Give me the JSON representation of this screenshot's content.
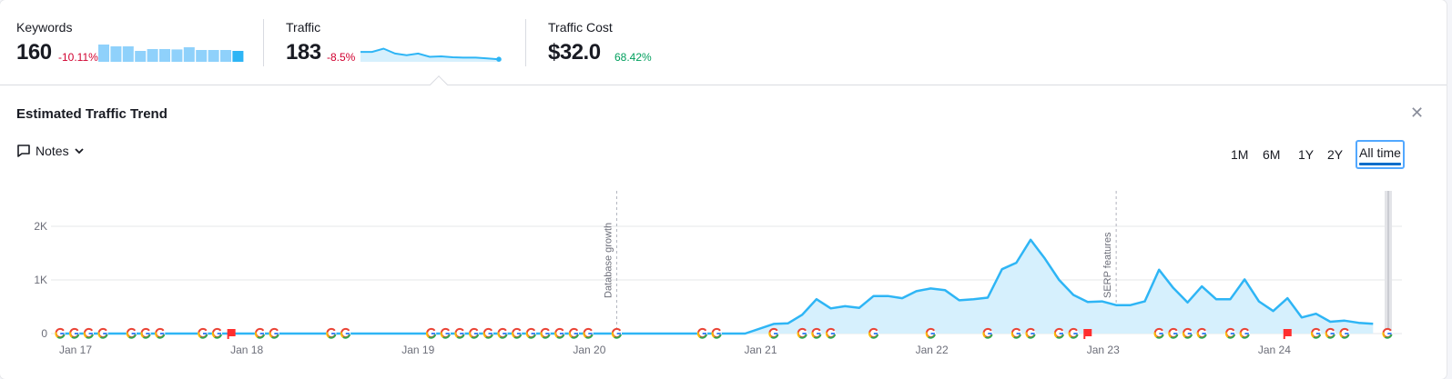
{
  "metrics": {
    "keywords": {
      "label": "Keywords",
      "value": "160",
      "delta": "-10.11%",
      "bars": [
        0.95,
        0.85,
        0.85,
        0.6,
        0.7,
        0.7,
        0.68,
        0.8,
        0.65,
        0.65,
        0.65,
        0.6
      ]
    },
    "traffic": {
      "label": "Traffic",
      "value": "183",
      "delta": "-8.5%",
      "spark": [
        0.55,
        0.55,
        0.75,
        0.45,
        0.35,
        0.45,
        0.25,
        0.28,
        0.22,
        0.2,
        0.2,
        0.15,
        0.1
      ]
    },
    "traffic_cost": {
      "label": "Traffic Cost",
      "value": "$32.0",
      "delta": "68.42%"
    }
  },
  "colors": {
    "line": "#2eb5f5",
    "fill": "#d6f0fd",
    "negative": "#d1002f",
    "positive": "#009f5d",
    "accent": "#006dca"
  },
  "panel": {
    "title": "Estimated Traffic Trend",
    "close_icon": "close-icon",
    "notes_label": "Notes"
  },
  "periods": [
    "1M",
    "6M",
    "1Y",
    "2Y",
    "All time"
  ],
  "active_period": "All time",
  "chart_data": {
    "type": "area",
    "title": "",
    "xlabel": "",
    "ylabel": "",
    "x_ticks": [
      "Jan 17",
      "Jan 18",
      "Jan 19",
      "Jan 20",
      "Jan 21",
      "Jan 22",
      "Jan 23",
      "Jan 24"
    ],
    "y_ticks": [
      "0",
      "1K",
      "2K"
    ],
    "ylim": [
      0,
      2000
    ],
    "x_start": "2017-01",
    "x_end": "2024-10",
    "grid": true,
    "series": [
      {
        "values": [
          {
            "x": "2017-01",
            "y": 0
          },
          {
            "x": "2021-01",
            "y": 0
          },
          {
            "x": "2021-03",
            "y": 180
          },
          {
            "x": "2021-04",
            "y": 190
          },
          {
            "x": "2021-05",
            "y": 350
          },
          {
            "x": "2021-06",
            "y": 640
          },
          {
            "x": "2021-07",
            "y": 470
          },
          {
            "x": "2021-08",
            "y": 510
          },
          {
            "x": "2021-09",
            "y": 480
          },
          {
            "x": "2021-10",
            "y": 700
          },
          {
            "x": "2021-11",
            "y": 700
          },
          {
            "x": "2021-12",
            "y": 660
          },
          {
            "x": "2022-01",
            "y": 790
          },
          {
            "x": "2022-02",
            "y": 840
          },
          {
            "x": "2022-03",
            "y": 810
          },
          {
            "x": "2022-04",
            "y": 620
          },
          {
            "x": "2022-05",
            "y": 640
          },
          {
            "x": "2022-06",
            "y": 670
          },
          {
            "x": "2022-07",
            "y": 1200
          },
          {
            "x": "2022-08",
            "y": 1320
          },
          {
            "x": "2022-09",
            "y": 1750
          },
          {
            "x": "2022-10",
            "y": 1400
          },
          {
            "x": "2022-11",
            "y": 1000
          },
          {
            "x": "2022-12",
            "y": 720
          },
          {
            "x": "2023-01",
            "y": 590
          },
          {
            "x": "2023-02",
            "y": 600
          },
          {
            "x": "2023-03",
            "y": 530
          },
          {
            "x": "2023-04",
            "y": 530
          },
          {
            "x": "2023-05",
            "y": 600
          },
          {
            "x": "2023-06",
            "y": 1190
          },
          {
            "x": "2023-07",
            "y": 850
          },
          {
            "x": "2023-08",
            "y": 580
          },
          {
            "x": "2023-09",
            "y": 880
          },
          {
            "x": "2023-10",
            "y": 640
          },
          {
            "x": "2023-11",
            "y": 640
          },
          {
            "x": "2023-12",
            "y": 1010
          },
          {
            "x": "2024-01",
            "y": 600
          },
          {
            "x": "2024-02",
            "y": 420
          },
          {
            "x": "2024-03",
            "y": 660
          },
          {
            "x": "2024-04",
            "y": 300
          },
          {
            "x": "2024-05",
            "y": 370
          },
          {
            "x": "2024-06",
            "y": 220
          },
          {
            "x": "2024-07",
            "y": 240
          },
          {
            "x": "2024-08",
            "y": 200
          },
          {
            "x": "2024-09",
            "y": 183
          }
        ]
      }
    ],
    "annotations": [
      {
        "x": "2020-04",
        "label": "Database growth"
      },
      {
        "x": "2023-03",
        "label": "SERP features"
      }
    ],
    "google_markers": [
      "2017-01",
      "2017-02",
      "2017-03",
      "2017-04",
      "2017-06",
      "2017-07",
      "2017-08",
      "2017-11",
      "2017-12",
      "2018-03",
      "2018-04",
      "2018-08",
      "2018-09",
      "2019-03",
      "2019-04",
      "2019-05",
      "2019-06",
      "2019-07",
      "2019-08",
      "2019-09",
      "2019-10",
      "2019-11",
      "2019-12",
      "2020-01",
      "2020-02",
      "2020-04",
      "2020-10",
      "2020-11",
      "2021-03",
      "2021-05",
      "2021-06",
      "2021-07",
      "2021-10",
      "2022-02",
      "2022-06",
      "2022-08",
      "2022-09",
      "2022-11",
      "2022-12",
      "2023-06",
      "2023-07",
      "2023-08",
      "2023-09",
      "2023-11",
      "2023-12",
      "2024-05",
      "2024-06",
      "2024-07",
      "2024-10"
    ],
    "flag_markers": [
      "2018-01",
      "2023-01",
      "2024-03"
    ]
  }
}
